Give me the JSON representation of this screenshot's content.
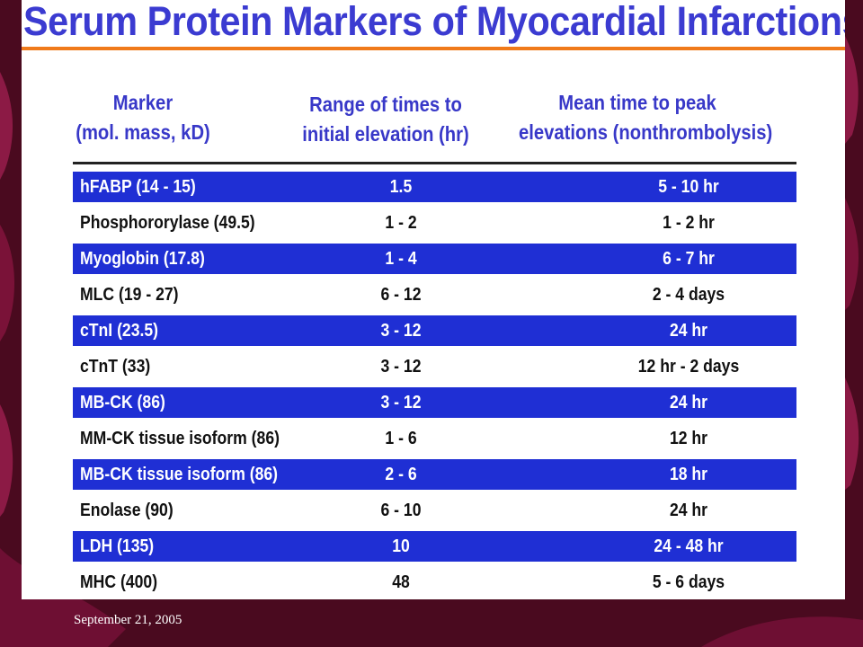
{
  "title": "Serum Protein Markers of Myocardial Infarctions",
  "headers": {
    "marker": [
      "Marker",
      "(mol. mass, kD)"
    ],
    "range": [
      "Range of times to",
      "initial elevation (hr)"
    ],
    "mean": [
      "Mean time to peak",
      "elevations (nonthrombolysis)"
    ]
  },
  "rows": [
    {
      "marker": "hFABP (14 - 15)",
      "range": "1.5",
      "mean": "5 - 10 hr"
    },
    {
      "marker": "Phosphororylase (49.5)",
      "range": "1 - 2",
      "mean": "1 - 2 hr"
    },
    {
      "marker": "Myoglobin (17.8)",
      "range": "1 - 4",
      "mean": "6 - 7 hr"
    },
    {
      "marker": "MLC (19 - 27)",
      "range": "6 - 12",
      "mean": "2 - 4 days"
    },
    {
      "marker": "cTnI (23.5)",
      "range": "3 - 12",
      "mean": "24 hr"
    },
    {
      "marker": "cTnT (33)",
      "range": "3 - 12",
      "mean": "12 hr - 2 days"
    },
    {
      "marker": "MB-CK (86)",
      "range": "3 - 12",
      "mean": "24 hr"
    },
    {
      "marker": "MM-CK tissue isoform (86)",
      "range": "1 - 6",
      "mean": "12 hr"
    },
    {
      "marker": "MB-CK tissue isoform (86)",
      "range": "2 - 6",
      "mean": "18 hr"
    },
    {
      "marker": "Enolase (90)",
      "range": "6 - 10",
      "mean": "24 hr"
    },
    {
      "marker": "LDH (135)",
      "range": "10",
      "mean": "24 - 48 hr"
    },
    {
      "marker": "MHC (400)",
      "range": "48",
      "mean": "5 - 6 days"
    }
  ],
  "footer": "September 21, 2005",
  "colors": {
    "background": "#4a0a1f",
    "accent_swirl": "#8c1a45",
    "title_text": "#3b3bd1",
    "title_rule": "#f07a1a",
    "header_text": "#3838c8",
    "band_blue": "#1f2fd4"
  }
}
